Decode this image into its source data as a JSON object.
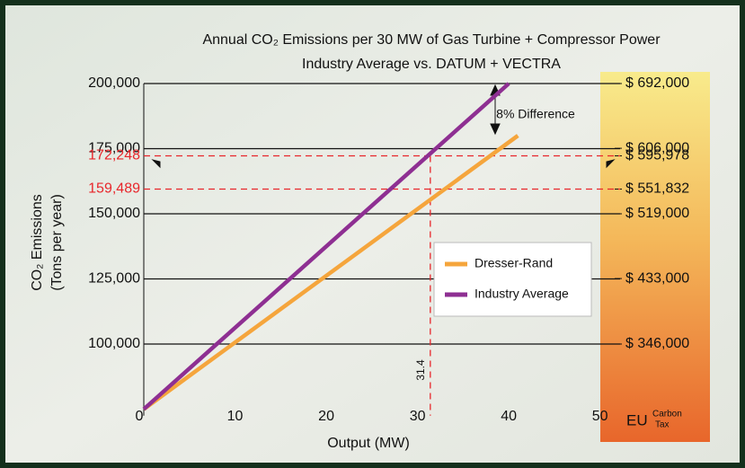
{
  "chart_data": {
    "type": "line",
    "title": "Annual CO₂ Emissions per 30 MW of Gas Turbine + Compressor Power",
    "subtitle": "Industry Average vs. DATUM + VECTRA",
    "xlabel": "Output (MW)",
    "ylabel": [
      "CO₂ Emissions",
      "(Tons per year)"
    ],
    "y2label": [
      "EU",
      "Carbon",
      "Tax"
    ],
    "xlim": [
      0,
      52
    ],
    "xticks": [
      0,
      10,
      20,
      30,
      40,
      50
    ],
    "ylim": [
      72500,
      200000
    ],
    "yticks": [
      {
        "value": 100000,
        "label": "100,000"
      },
      {
        "value": 125000,
        "label": "125,000"
      },
      {
        "value": 150000,
        "label": "150,000"
      },
      {
        "value": 175000,
        "label": "175,000"
      },
      {
        "value": 200000,
        "label": "200,000"
      }
    ],
    "y2lim": [
      250850,
      692000
    ],
    "y2ticks": [
      {
        "value": 346000,
        "label": "$ 346,000"
      },
      {
        "value": 433000,
        "label": "$ 433,000"
      },
      {
        "value": 519000,
        "label": "$ 519,000"
      },
      {
        "value": 551832,
        "label": "$ 551,832"
      },
      {
        "value": 595978,
        "label": "$ 595,978"
      },
      {
        "value": 606000,
        "label": "$ 606,000"
      },
      {
        "value": 692000,
        "label": "$ 692,000"
      }
    ],
    "grid": true,
    "reference_lines": [
      {
        "value": 172248,
        "label": "172,248"
      },
      {
        "value": 159489,
        "label": "159,489"
      }
    ],
    "vertical_reference": {
      "value": 31.4,
      "label": "31.4"
    },
    "annotation": "8% Difference",
    "legend": "right",
    "series": [
      {
        "name": "Dresser-Rand",
        "color": "#f5a53c",
        "x": [
          0,
          41
        ],
        "values": [
          75000,
          180000
        ]
      },
      {
        "name": "Industry Average",
        "color": "#8e2f92",
        "x": [
          0,
          40
        ],
        "values": [
          75000,
          200000
        ]
      }
    ]
  }
}
